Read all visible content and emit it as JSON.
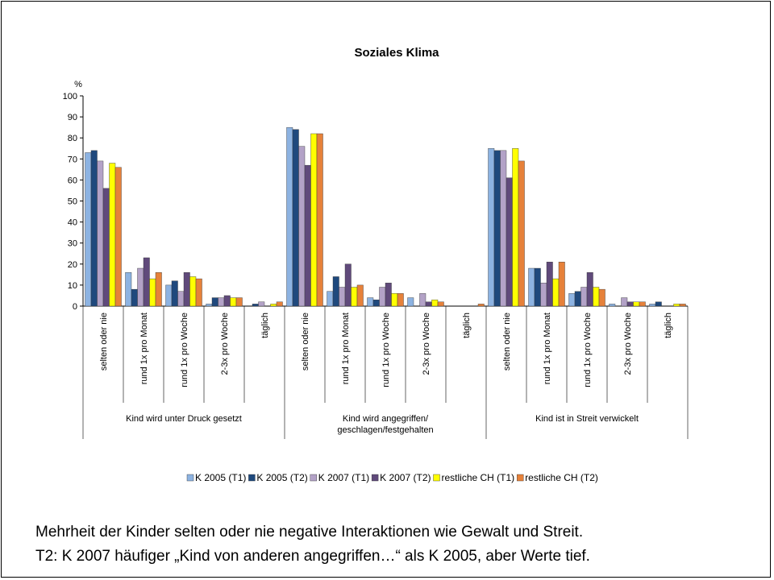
{
  "chart_data": {
    "type": "bar",
    "title": "Soziales Klima",
    "ylabel": "%",
    "categories": [
      "selten oder nie",
      "rund 1x pro Monat",
      "rund 1x pro Woche",
      "2-3x pro Woche",
      "täglich",
      "selten oder nie",
      "rund 1x pro Monat",
      "rund 1x pro Woche",
      "2-3x pro Woche",
      "täglich",
      "selten oder nie",
      "rund 1x pro Monat",
      "rund 1x pro Woche",
      "2-3x pro Woche",
      "täglich"
    ],
    "groups": [
      "Kind wird unter Druck gesetzt",
      "Kind wird angegriffen/ geschlagen/festgehalten",
      "Kind ist in Streit verwickelt"
    ],
    "series": [
      {
        "name": "K 2005 (T1)",
        "color": "#8db3e2",
        "values": [
          73,
          16,
          10,
          1,
          0,
          85,
          7,
          4,
          4,
          0,
          75,
          18,
          6,
          1,
          1
        ]
      },
      {
        "name": "K 2005 (T2)",
        "color": "#1f497d",
        "values": [
          74,
          8,
          12,
          4,
          1,
          84,
          14,
          3,
          0,
          0,
          74,
          18,
          7,
          0,
          2
        ]
      },
      {
        "name": "K 2007 (T1)",
        "color": "#b3a2c7",
        "values": [
          69,
          18,
          7,
          4,
          2,
          76,
          9,
          9,
          6,
          0,
          74,
          11,
          9,
          4,
          0
        ]
      },
      {
        "name": "K 2007 (T2)",
        "color": "#604a7b",
        "values": [
          56,
          23,
          16,
          5,
          0,
          67,
          20,
          11,
          2,
          0,
          61,
          21,
          16,
          2,
          0
        ]
      },
      {
        "name": "restliche CH (T1)",
        "color": "#ffff00",
        "values": [
          68,
          13,
          14,
          4,
          1,
          82,
          9,
          6,
          3,
          0,
          75,
          13,
          9,
          2,
          1
        ]
      },
      {
        "name": "restliche CH (T2)",
        "color": "#e6813a",
        "values": [
          66,
          16,
          13,
          4,
          2,
          82,
          10,
          6,
          2,
          1,
          69,
          21,
          8,
          2,
          1
        ]
      }
    ],
    "ylim": [
      0,
      100
    ],
    "yticks": [
      0,
      10,
      20,
      30,
      40,
      50,
      60,
      70,
      80,
      90,
      100
    ],
    "grid": false,
    "legend": "bottom"
  },
  "notes": [
    "Mehrheit der Kinder selten oder nie negative Interaktionen wie Gewalt und Streit.",
    "T2: K 2007 häufiger „Kind von anderen angegriffen…“ als K 2005, aber Werte tief."
  ]
}
